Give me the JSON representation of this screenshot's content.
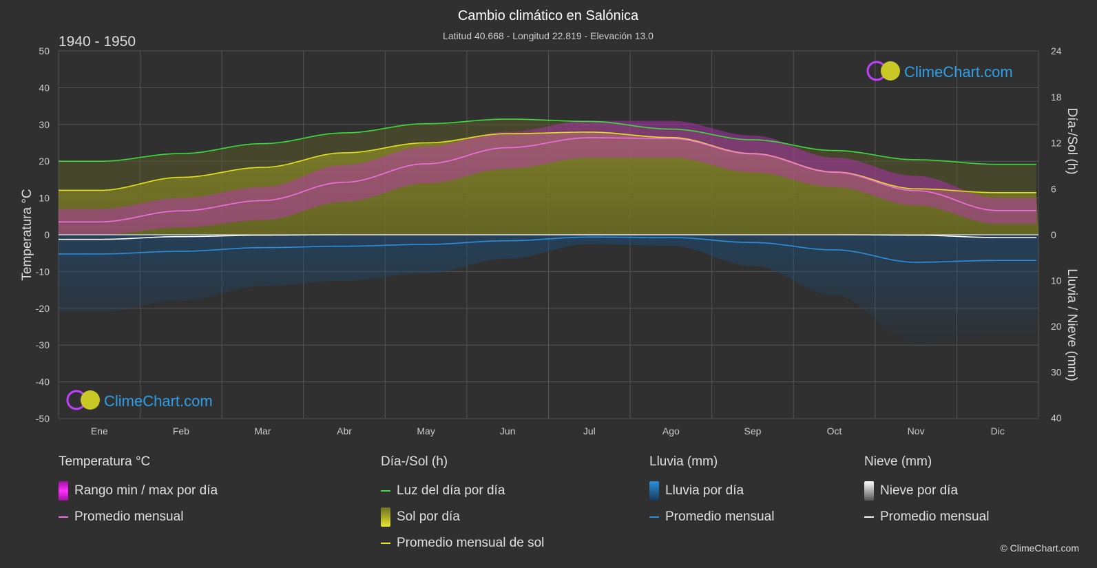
{
  "chart_data": {
    "type": "area",
    "title": "Cambio climático en Salónica",
    "subtitle": "Latitud 40.668 - Longitud 22.819 - Elevación 13.0",
    "period": "1940 - 1950",
    "brand": "ClimeChart.com",
    "copyright": "© ClimeChart.com",
    "months": [
      "Ene",
      "Feb",
      "Mar",
      "Abr",
      "May",
      "Jun",
      "Jul",
      "Ago",
      "Sep",
      "Oct",
      "Nov",
      "Dic"
    ],
    "left_axis": {
      "label": "Temperatura °C",
      "min": -50,
      "max": 50,
      "ticks": [
        50,
        40,
        30,
        20,
        10,
        0,
        -10,
        -20,
        -30,
        -40,
        -50
      ]
    },
    "right_axis_top": {
      "label": "Día-/Sol (h)",
      "min": 0,
      "max": 24,
      "ticks": [
        24,
        18,
        12,
        6,
        0
      ]
    },
    "right_axis_bottom": {
      "label": "Lluvia / Nieve (mm)",
      "min": 0,
      "max": 40,
      "ticks": [
        0,
        10,
        20,
        30,
        40
      ]
    },
    "series": [
      {
        "name": "Luz del día por día",
        "unit": "h",
        "color": "#3ddc3d",
        "values": [
          9.6,
          10.6,
          11.9,
          13.3,
          14.5,
          15.1,
          14.8,
          13.8,
          12.4,
          11.0,
          9.8,
          9.2
        ]
      },
      {
        "name": "Promedio mensual de sol",
        "unit": "h",
        "color": "#e3e31f",
        "values": [
          5.8,
          7.5,
          8.8,
          10.7,
          12.0,
          13.2,
          13.4,
          12.7,
          10.6,
          8.2,
          6.0,
          5.5
        ]
      },
      {
        "name": "Promedio mensual",
        "group": "temperature",
        "unit": "°C",
        "color": "#f070e0",
        "values": [
          3.5,
          6.5,
          9.3,
          14.3,
          19.3,
          23.7,
          26.4,
          26.2,
          22.0,
          17.0,
          12.0,
          6.6
        ]
      },
      {
        "name": "Promedio mensual",
        "group": "rain",
        "unit": "mm",
        "color": "#2a8fe0",
        "values": [
          4.2,
          3.6,
          2.8,
          2.5,
          2.1,
          1.3,
          0.5,
          0.6,
          1.7,
          3.3,
          6.0,
          5.6
        ]
      },
      {
        "name": "Promedio mensual",
        "group": "snow",
        "unit": "mm",
        "color": "#ffffff",
        "values": [
          1.0,
          0.4,
          0.1,
          0.0,
          0.0,
          0.0,
          0.0,
          0.0,
          0.0,
          0.0,
          0.1,
          0.6
        ]
      }
    ],
    "temperature_range_approx": {
      "max": [
        7,
        10,
        13,
        19,
        24,
        28,
        31,
        31,
        27,
        21,
        16,
        10
      ],
      "min": [
        0,
        2,
        4,
        9,
        14,
        18,
        21,
        21,
        17,
        13,
        8,
        3
      ]
    },
    "grid": true
  },
  "legend": {
    "temp": {
      "header": "Temperatura °C",
      "range": "Rango min / max por día",
      "avg": "Promedio mensual"
    },
    "sun": {
      "header": "Día-/Sol (h)",
      "daylight": "Luz del día por día",
      "sun": "Sol por día",
      "sun_avg": "Promedio mensual de sol"
    },
    "rain": {
      "header": "Lluvia (mm)",
      "per_day": "Lluvia por día",
      "avg": "Promedio mensual"
    },
    "snow": {
      "header": "Nieve (mm)",
      "per_day": "Nieve por día",
      "avg": "Promedio mensual"
    }
  },
  "colors": {
    "daylight": "#3ddc3d",
    "sun": "#e3e31f",
    "temp_avg": "#f070e0",
    "temp_range": "#d020d0",
    "rain": "#2a8fe0",
    "snow": "#ffffff",
    "brand": "#2ea0e8"
  }
}
